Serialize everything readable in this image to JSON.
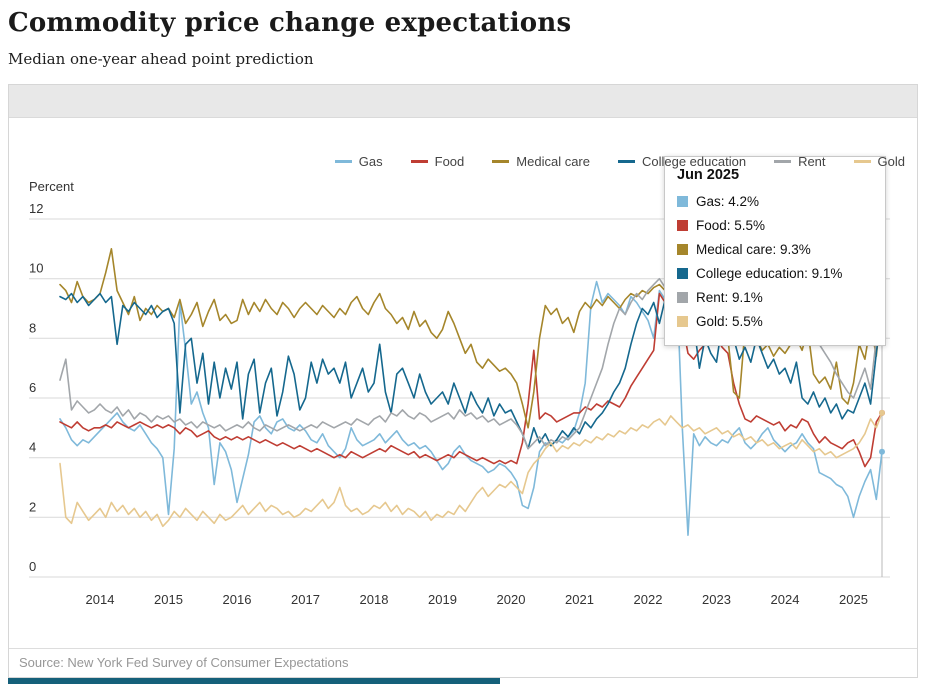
{
  "page": {
    "title": "Commodity price change expectations",
    "subtitle": "Median one-year ahead point prediction",
    "source": "Source: New York Fed Survey of Consumer Expectations"
  },
  "tooltip": {
    "title": "Jun 2025",
    "rows": [
      {
        "series": "Gas",
        "value": "4.2%"
      },
      {
        "series": "Food",
        "value": "5.5%"
      },
      {
        "series": "Medical care",
        "value": "9.3%"
      },
      {
        "series": "College education",
        "value": "9.1%"
      },
      {
        "series": "Rent",
        "value": "9.1%"
      },
      {
        "series": "Gold",
        "value": "5.5%"
      }
    ]
  },
  "chart_data": {
    "type": "line",
    "title": "Commodity price change expectations",
    "subtitle": "Median one-year ahead point prediction",
    "ylabel": "Percent",
    "ylim": [
      0,
      12
    ],
    "yticks": [
      0,
      2,
      4,
      6,
      8,
      10,
      12
    ],
    "grid": true,
    "legend_position": "top",
    "x_frequency": "monthly",
    "x_start": "2013-06",
    "x_end": "2025-06",
    "x_tick_years": [
      2014,
      2015,
      2016,
      2017,
      2018,
      2019,
      2020,
      2021,
      2022,
      2023,
      2024,
      2025
    ],
    "crosshair_label": "Jun 2025",
    "series": [
      {
        "name": "Gas",
        "color": "#7fb9da",
        "values": [
          5.3,
          5.0,
          4.6,
          4.4,
          4.6,
          4.5,
          4.7,
          4.9,
          5.1,
          5.3,
          5.5,
          5.2,
          5.0,
          4.9,
          5.1,
          4.8,
          4.5,
          4.3,
          4.0,
          2.1,
          4.3,
          9.2,
          7.6,
          5.8,
          6.2,
          5.5,
          5.0,
          3.1,
          4.5,
          4.2,
          3.6,
          2.5,
          3.3,
          4.1,
          5.2,
          5.4,
          5.0,
          4.8,
          5.2,
          5.3,
          5.0,
          4.9,
          5.1,
          4.9,
          4.6,
          4.5,
          4.8,
          4.4,
          4.2,
          4.0,
          4.3,
          5.0,
          4.6,
          4.4,
          4.5,
          4.6,
          4.8,
          4.5,
          4.7,
          4.9,
          4.6,
          4.4,
          4.5,
          4.3,
          4.4,
          4.2,
          3.9,
          3.6,
          3.8,
          4.2,
          4.4,
          4.1,
          3.9,
          3.8,
          3.7,
          3.5,
          3.6,
          3.8,
          3.7,
          3.5,
          3.2,
          2.4,
          2.3,
          3.0,
          4.2,
          4.5,
          4.4,
          4.6,
          4.5,
          4.7,
          4.9,
          5.5,
          6.5,
          9.1,
          9.9,
          9.2,
          9.5,
          9.3,
          9.1,
          8.8,
          9.4,
          9.2,
          8.9,
          8.6,
          8.0,
          9.6,
          9.3,
          9.0,
          10.1,
          5.0,
          1.4,
          4.8,
          4.4,
          4.7,
          4.5,
          4.4,
          4.6,
          4.5,
          4.8,
          5.0,
          4.5,
          4.3,
          4.5,
          4.8,
          5.0,
          4.6,
          4.4,
          4.2,
          4.4,
          4.5,
          4.8,
          4.5,
          4.3,
          3.5,
          3.4,
          3.3,
          3.1,
          3.0,
          2.7,
          2.0,
          2.7,
          3.2,
          3.6,
          2.6,
          4.2
        ]
      },
      {
        "name": "Food",
        "color": "#bf3d33",
        "values": [
          5.2,
          5.1,
          5.0,
          5.2,
          5.0,
          4.9,
          5.0,
          5.0,
          5.1,
          5.0,
          5.2,
          5.1,
          5.0,
          5.1,
          5.2,
          5.1,
          5.0,
          5.1,
          5.0,
          5.1,
          5.0,
          4.8,
          5.0,
          4.9,
          4.7,
          4.8,
          4.9,
          4.7,
          4.6,
          4.7,
          4.6,
          4.7,
          4.6,
          4.7,
          4.6,
          4.5,
          4.6,
          4.5,
          4.4,
          4.5,
          4.4,
          4.3,
          4.4,
          4.3,
          4.2,
          4.3,
          4.2,
          4.1,
          4.0,
          4.1,
          4.0,
          4.2,
          4.1,
          4.0,
          4.1,
          4.2,
          4.3,
          4.2,
          4.4,
          4.3,
          4.2,
          4.1,
          4.2,
          4.0,
          4.1,
          4.0,
          3.9,
          4.0,
          4.1,
          4.0,
          4.2,
          4.1,
          4.0,
          3.9,
          4.0,
          3.9,
          3.8,
          3.9,
          3.8,
          3.9,
          3.8,
          4.5,
          5.8,
          7.6,
          5.3,
          5.5,
          5.4,
          5.2,
          5.3,
          5.4,
          5.5,
          5.5,
          5.7,
          5.6,
          5.8,
          5.7,
          5.9,
          5.8,
          5.7,
          6.0,
          6.4,
          6.7,
          7.0,
          7.3,
          7.6,
          9.5,
          9.2,
          9.0,
          9.3,
          8.5,
          7.5,
          7.3,
          7.6,
          7.8,
          8.0,
          8.0,
          7.7,
          7.5,
          6.5,
          5.8,
          5.3,
          5.2,
          5.4,
          5.3,
          5.2,
          5.1,
          5.2,
          4.9,
          5.1,
          5.0,
          5.3,
          5.2,
          4.8,
          4.5,
          4.7,
          4.5,
          4.4,
          4.3,
          4.5,
          4.6,
          4.2,
          3.7,
          4.0,
          5.2,
          5.5
        ]
      },
      {
        "name": "Medical care",
        "color": "#a5862b",
        "values": [
          9.8,
          9.6,
          9.2,
          9.9,
          9.4,
          9.2,
          9.3,
          9.5,
          10.2,
          11.0,
          9.6,
          9.2,
          8.8,
          9.4,
          8.6,
          9.0,
          8.8,
          9.1,
          8.9,
          9.0,
          8.7,
          9.3,
          8.5,
          8.8,
          9.2,
          8.4,
          8.9,
          9.3,
          8.6,
          8.8,
          8.5,
          8.6,
          9.3,
          8.8,
          9.2,
          8.9,
          9.3,
          9.0,
          8.8,
          9.2,
          9.0,
          8.7,
          9.0,
          9.2,
          9.0,
          8.8,
          9.1,
          8.9,
          8.7,
          9.0,
          8.8,
          9.2,
          9.4,
          9.0,
          8.8,
          9.2,
          9.5,
          9.0,
          8.8,
          8.5,
          8.7,
          8.3,
          8.9,
          8.4,
          8.6,
          8.2,
          8.0,
          8.3,
          8.9,
          8.5,
          8.0,
          7.5,
          7.8,
          7.2,
          7.0,
          7.3,
          7.1,
          6.9,
          7.0,
          6.8,
          6.5,
          5.8,
          5.0,
          6.2,
          8.0,
          9.1,
          8.8,
          9.0,
          8.5,
          8.7,
          8.2,
          8.9,
          9.2,
          9.0,
          9.3,
          9.1,
          9.4,
          9.2,
          9.0,
          9.3,
          9.5,
          9.4,
          9.6,
          9.5,
          9.7,
          9.8,
          9.6,
          9.5,
          9.7,
          9.4,
          9.6,
          9.3,
          9.5,
          9.2,
          9.6,
          9.4,
          9.6,
          8.0,
          6.2,
          6.0,
          8.3,
          8.5,
          8.0,
          7.6,
          7.8,
          7.4,
          7.7,
          7.5,
          7.8,
          8.0,
          7.6,
          8.3,
          6.8,
          6.5,
          6.7,
          6.3,
          7.2,
          6.0,
          5.8,
          6.5,
          7.8,
          7.3,
          8.5,
          7.4,
          9.3
        ]
      },
      {
        "name": "College education",
        "color": "#15688e",
        "values": [
          9.4,
          9.3,
          9.5,
          9.2,
          9.4,
          9.1,
          9.3,
          9.5,
          9.2,
          9.4,
          7.8,
          9.1,
          8.9,
          9.2,
          9.0,
          8.8,
          9.1,
          8.7,
          8.9,
          9.0,
          8.5,
          5.5,
          7.8,
          8.0,
          6.5,
          7.5,
          5.8,
          7.2,
          6.0,
          7.0,
          6.3,
          7.2,
          5.3,
          6.8,
          7.3,
          5.5,
          6.5,
          7.0,
          5.4,
          6.2,
          7.4,
          6.8,
          5.6,
          6.0,
          7.2,
          6.5,
          7.3,
          6.8,
          7.0,
          6.5,
          7.2,
          6.0,
          6.5,
          7.0,
          6.2,
          6.5,
          7.8,
          6.2,
          5.5,
          6.8,
          7.0,
          6.5,
          6.0,
          6.8,
          6.2,
          5.8,
          6.0,
          6.2,
          5.8,
          6.5,
          6.0,
          5.5,
          6.2,
          5.8,
          5.5,
          6.0,
          5.4,
          5.8,
          5.5,
          5.6,
          5.2,
          4.8,
          4.3,
          5.0,
          4.5,
          4.8,
          4.4,
          4.6,
          4.9,
          4.7,
          5.0,
          4.8,
          5.2,
          5.0,
          5.3,
          5.5,
          5.8,
          6.2,
          6.5,
          7.0,
          7.8,
          8.5,
          9.0,
          8.8,
          9.2,
          8.5,
          9.3,
          8.0,
          9.1,
          8.7,
          9.2,
          8.5,
          7.0,
          8.0,
          7.5,
          7.2,
          8.5,
          7.8,
          8.0,
          7.3,
          7.7,
          7.2,
          8.0,
          7.5,
          7.0,
          7.3,
          6.8,
          7.0,
          6.5,
          7.2,
          6.0,
          5.8,
          6.2,
          5.7,
          6.0,
          5.5,
          5.8,
          5.3,
          5.6,
          5.5,
          6.0,
          6.5,
          5.8,
          7.5,
          9.1
        ]
      },
      {
        "name": "Rent",
        "color": "#a2a6aa",
        "values": [
          6.6,
          7.3,
          5.6,
          5.9,
          5.7,
          5.5,
          5.6,
          5.8,
          5.6,
          5.5,
          5.7,
          5.4,
          5.6,
          5.3,
          5.5,
          5.4,
          5.2,
          5.4,
          5.3,
          5.4,
          5.2,
          5.3,
          5.1,
          5.2,
          5.0,
          5.2,
          5.1,
          5.0,
          5.1,
          4.9,
          5.0,
          5.1,
          5.0,
          5.2,
          5.0,
          4.9,
          5.1,
          5.0,
          4.9,
          5.0,
          5.1,
          5.0,
          4.9,
          5.0,
          5.1,
          5.0,
          5.2,
          5.1,
          5.0,
          5.1,
          5.2,
          5.1,
          5.3,
          5.2,
          5.1,
          5.3,
          5.4,
          5.2,
          5.5,
          5.4,
          5.6,
          5.4,
          5.3,
          5.5,
          5.4,
          5.2,
          5.3,
          5.4,
          5.5,
          5.3,
          5.6,
          5.4,
          5.5,
          5.3,
          5.4,
          5.2,
          5.3,
          5.1,
          5.2,
          5.3,
          5.1,
          4.8,
          4.3,
          4.5,
          4.7,
          4.4,
          4.6,
          4.5,
          4.7,
          4.6,
          4.8,
          5.0,
          5.5,
          6.0,
          6.5,
          7.0,
          7.8,
          8.5,
          9.0,
          8.8,
          9.2,
          9.5,
          9.3,
          9.6,
          9.8,
          10.0,
          9.7,
          10.2,
          9.9,
          10.0,
          9.8,
          9.6,
          9.9,
          9.7,
          9.5,
          9.8,
          9.4,
          9.6,
          9.2,
          9.0,
          8.8,
          9.0,
          8.6,
          8.8,
          8.4,
          8.2,
          8.5,
          8.3,
          8.6,
          8.8,
          8.4,
          9.0,
          8.2,
          7.8,
          7.5,
          7.2,
          6.8,
          6.5,
          6.2,
          6.0,
          6.5,
          7.0,
          6.3,
          8.0,
          9.1
        ]
      },
      {
        "name": "Gold",
        "color": "#e6c88f",
        "values": [
          3.8,
          2.0,
          1.8,
          2.5,
          2.2,
          1.9,
          2.1,
          2.3,
          2.0,
          2.5,
          2.2,
          2.4,
          2.1,
          2.3,
          2.0,
          2.2,
          1.9,
          2.1,
          1.7,
          1.9,
          2.2,
          2.0,
          2.3,
          2.1,
          1.9,
          2.2,
          2.0,
          1.8,
          2.1,
          1.9,
          2.0,
          2.2,
          2.4,
          2.1,
          2.3,
          2.5,
          2.2,
          2.4,
          2.3,
          2.1,
          2.2,
          2.0,
          2.1,
          2.3,
          2.2,
          2.4,
          2.6,
          2.3,
          2.5,
          3.0,
          2.4,
          2.2,
          2.3,
          2.1,
          2.2,
          2.4,
          2.3,
          2.5,
          2.2,
          2.4,
          2.1,
          2.3,
          2.2,
          2.0,
          2.2,
          1.9,
          2.1,
          2.0,
          2.2,
          2.1,
          2.4,
          2.2,
          2.5,
          2.8,
          3.0,
          2.7,
          2.9,
          3.1,
          3.0,
          3.2,
          3.0,
          2.8,
          3.5,
          3.8,
          4.0,
          4.3,
          4.5,
          4.2,
          4.4,
          4.3,
          4.5,
          4.4,
          4.6,
          4.5,
          4.7,
          4.6,
          4.8,
          4.7,
          4.9,
          4.8,
          5.0,
          4.9,
          5.1,
          5.0,
          5.2,
          5.3,
          5.1,
          5.4,
          5.2,
          5.0,
          5.1,
          4.9,
          5.0,
          4.8,
          4.9,
          5.0,
          4.8,
          4.9,
          4.7,
          4.8,
          4.6,
          4.7,
          4.5,
          4.6,
          4.4,
          4.5,
          4.3,
          4.4,
          4.5,
          4.3,
          4.6,
          4.4,
          4.2,
          4.3,
          4.1,
          4.2,
          4.0,
          4.1,
          4.2,
          4.3,
          4.5,
          4.8,
          5.3,
          5.0,
          5.5
        ]
      }
    ]
  }
}
